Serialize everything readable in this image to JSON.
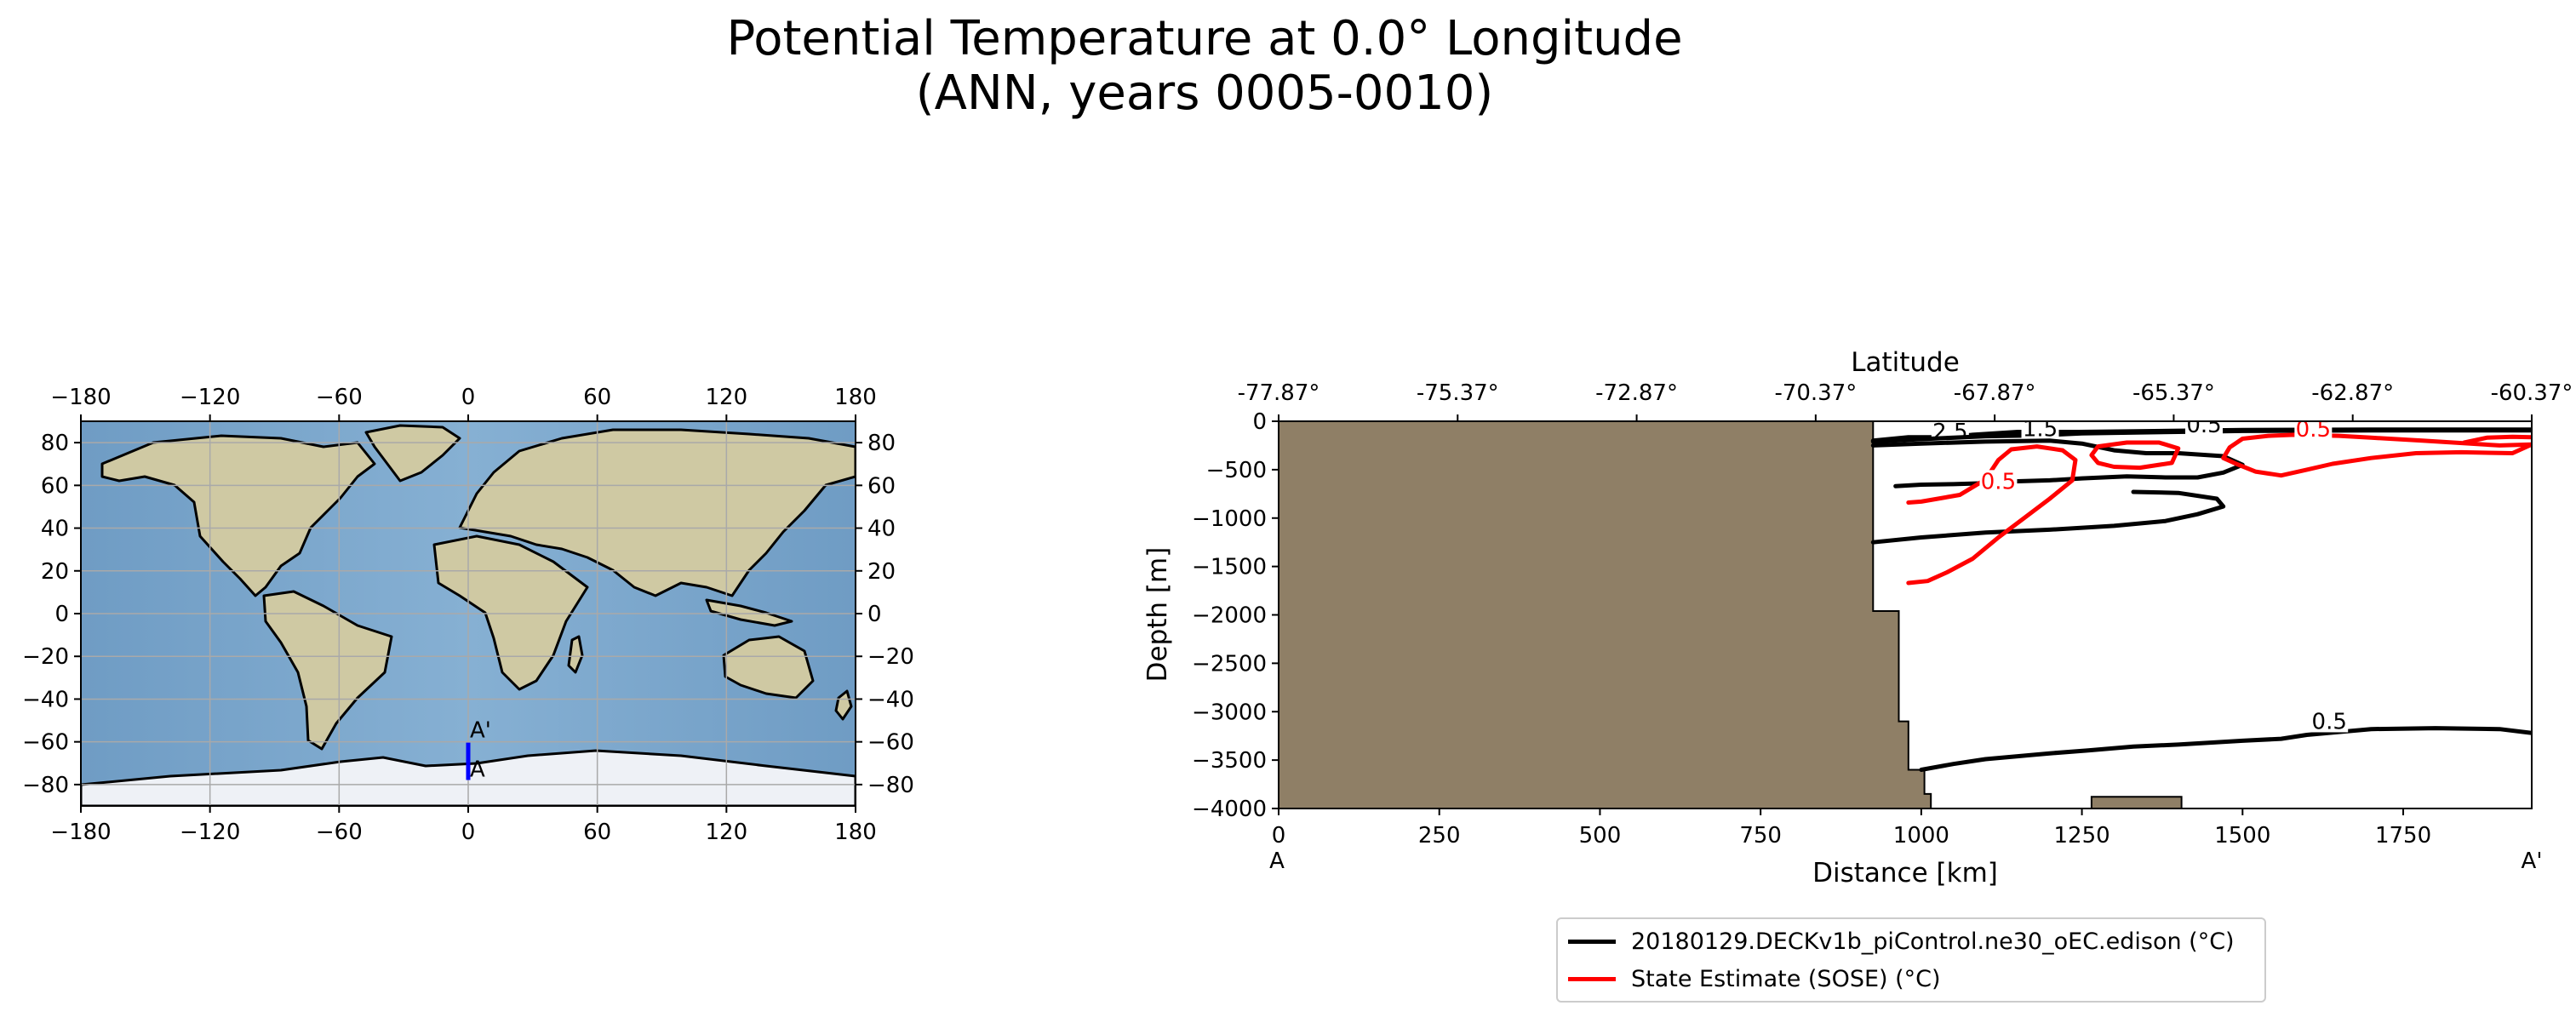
{
  "figure": {
    "title_line1": "Potential Temperature at 0.0° Longitude",
    "title_line2": "(ANN, years 0005-0010)"
  },
  "colors": {
    "model": "#000000",
    "obs": "#ff0000",
    "land": "#8f7f66",
    "section_line": "#0000ff",
    "ocean": "#7ba6c9",
    "map_land": "#cfc9a3",
    "ice": "#eef1f6"
  },
  "chart_data": [
    {
      "type": "map",
      "projection": "PlateCarree",
      "xticks": [
        -180,
        -120,
        -60,
        0,
        60,
        120,
        180
      ],
      "yticks": [
        -80,
        -60,
        -40,
        -20,
        0,
        20,
        40,
        60,
        80
      ],
      "xlim": [
        -180,
        180
      ],
      "ylim": [
        -90,
        90
      ],
      "grid": true,
      "transect": {
        "lon": 0.0,
        "lat_start": -77.87,
        "lat_end": -60.37,
        "start_label": "A",
        "end_label": "A'",
        "color": "#0000ff"
      }
    },
    {
      "type": "contour",
      "xlabel": "Distance [km]",
      "ylabel": "Depth [m]",
      "top_xlabel": "Latitude",
      "xlim": [
        0,
        1950
      ],
      "ylim": [
        -4000,
        0
      ],
      "xticks": [
        0,
        250,
        500,
        750,
        1000,
        1250,
        1500,
        1750
      ],
      "yticks": [
        0,
        -500,
        -1000,
        -1500,
        -2000,
        -2500,
        -3000,
        -3500,
        -4000
      ],
      "top_ticks": [
        "-77.87°",
        "-75.37°",
        "-72.87°",
        "-70.37°",
        "-67.87°",
        "-65.37°",
        "-62.87°",
        "-60.37°"
      ],
      "start_label": "A",
      "end_label": "A'",
      "bathymetry": [
        [
          0,
          0
        ],
        [
          925,
          0
        ],
        [
          925,
          -1960
        ],
        [
          965,
          -1960
        ],
        [
          965,
          -3100
        ],
        [
          980,
          -3100
        ],
        [
          980,
          -3600
        ],
        [
          1005,
          -3600
        ],
        [
          1005,
          -3850
        ],
        [
          1015,
          -3850
        ],
        [
          1015,
          -4000
        ],
        [
          0,
          -4000
        ]
      ],
      "seamount": [
        [
          1265,
          -4000
        ],
        [
          1265,
          -3880
        ],
        [
          1405,
          -3880
        ],
        [
          1405,
          -4000
        ]
      ],
      "series": [
        {
          "name": "20180129.DECKv1b_piControl.ne30_oEC.edison (°C)",
          "color": "#000000",
          "contours": [
            {
              "label": "2.5",
              "label_at": [
                1045,
                -165
              ],
              "points": [
                [
                  925,
                  -200
                ],
                [
                  980,
                  -165
                ],
                [
                  1045,
                  -165
                ],
                [
                  1080,
                  -140
                ],
                [
                  1150,
                  -110
                ],
                [
                  1220,
                  -110
                ],
                [
                  1245,
                  -110
                ],
                [
                  1320,
                  -105
                ],
                [
                  1500,
                  -90
                ],
                [
                  1700,
                  -85
                ],
                [
                  1950,
                  -85
                ]
              ]
            },
            {
              "label": "1.5",
              "label_at": [
                1185,
                -135
              ],
              "points": [
                [
                  925,
                  -210
                ],
                [
                  1000,
                  -185
                ],
                [
                  1100,
                  -155
                ],
                [
                  1185,
                  -145
                ],
                [
                  1250,
                  -125
                ],
                [
                  1400,
                  -110
                ],
                [
                  1500,
                  -100
                ],
                [
                  1700,
                  -95
                ],
                [
                  1950,
                  -95
                ]
              ]
            },
            {
              "label": "0.5",
              "label_at": [
                1440,
                -95
              ],
              "points": [
                [
                  925,
                  -250
                ],
                [
                  1000,
                  -230
                ],
                [
                  1100,
                  -210
                ],
                [
                  1200,
                  -200
                ],
                [
                  1250,
                  -230
                ],
                [
                  1300,
                  -300
                ],
                [
                  1350,
                  -330
                ],
                [
                  1400,
                  -330
                ],
                [
                  1470,
                  -360
                ],
                [
                  1500,
                  -450
                ],
                [
                  1470,
                  -530
                ],
                [
                  1430,
                  -580
                ],
                [
                  1380,
                  -580
                ],
                [
                  1320,
                  -570
                ],
                [
                  1250,
                  -590
                ],
                [
                  1200,
                  -610
                ],
                [
                  1150,
                  -620
                ],
                [
                  1100,
                  -640
                ],
                [
                  1050,
                  -650
                ],
                [
                  1000,
                  -655
                ],
                [
                  960,
                  -670
                ]
              ]
            },
            {
              "label": "",
              "label_at": null,
              "points": [
                [
                  925,
                  -1250
                ],
                [
                  1000,
                  -1200
                ],
                [
                  1100,
                  -1150
                ],
                [
                  1200,
                  -1120
                ],
                [
                  1300,
                  -1080
                ],
                [
                  1380,
                  -1030
                ],
                [
                  1430,
                  -960
                ],
                [
                  1470,
                  -880
                ],
                [
                  1460,
                  -800
                ],
                [
                  1400,
                  -740
                ],
                [
                  1330,
                  -730
                ]
              ]
            },
            {
              "label": "0.5",
              "label_at": [
                1635,
                -3160
              ],
              "points": [
                [
                  1000,
                  -3600
                ],
                [
                  1050,
                  -3540
                ],
                [
                  1100,
                  -3490
                ],
                [
                  1150,
                  -3460
                ],
                [
                  1200,
                  -3430
                ],
                [
                  1260,
                  -3400
                ],
                [
                  1330,
                  -3360
                ],
                [
                  1400,
                  -3340
                ],
                [
                  1500,
                  -3300
                ],
                [
                  1560,
                  -3280
                ],
                [
                  1600,
                  -3240
                ],
                [
                  1700,
                  -3180
                ],
                [
                  1800,
                  -3170
                ],
                [
                  1900,
                  -3180
                ],
                [
                  1950,
                  -3220
                ]
              ]
            }
          ]
        },
        {
          "name": "State Estimate (SOSE) (°C)",
          "color": "#ff0000",
          "contours": [
            {
              "label": "0.5",
              "label_at": [
                1120,
                -680
              ],
              "points": [
                [
                  980,
                  -1670
                ],
                [
                  1010,
                  -1650
                ],
                [
                  1040,
                  -1560
                ],
                [
                  1080,
                  -1420
                ],
                [
                  1120,
                  -1200
                ],
                [
                  1160,
                  -1000
                ],
                [
                  1200,
                  -800
                ],
                [
                  1235,
                  -610
                ],
                [
                  1240,
                  -400
                ],
                [
                  1220,
                  -300
                ],
                [
                  1180,
                  -260
                ],
                [
                  1140,
                  -290
                ],
                [
                  1120,
                  -400
                ],
                [
                  1100,
                  -600
                ],
                [
                  1060,
                  -760
                ],
                [
                  1000,
                  -830
                ],
                [
                  980,
                  -840
                ]
              ]
            },
            {
              "label": "",
              "label_at": null,
              "points": [
                [
                  1265,
                  -350
                ],
                [
                  1275,
                  -260
                ],
                [
                  1320,
                  -220
                ],
                [
                  1370,
                  -220
                ],
                [
                  1400,
                  -280
                ],
                [
                  1390,
                  -430
                ],
                [
                  1340,
                  -480
                ],
                [
                  1300,
                  -470
                ],
                [
                  1275,
                  -430
                ],
                [
                  1265,
                  -350
                ]
              ]
            },
            {
              "label": "0.5",
              "label_at": [
                1610,
                -140
              ],
              "points": [
                [
                  1500,
                  -180
                ],
                [
                  1540,
                  -150
                ],
                [
                  1580,
                  -140
                ],
                [
                  1650,
                  -150
                ],
                [
                  1700,
                  -170
                ],
                [
                  1780,
                  -200
                ],
                [
                  1900,
                  -250
                ],
                [
                  1950,
                  -240
                ],
                [
                  1920,
                  -330
                ],
                [
                  1840,
                  -320
                ],
                [
                  1770,
                  -330
                ],
                [
                  1700,
                  -380
                ],
                [
                  1640,
                  -440
                ],
                [
                  1600,
                  -500
                ],
                [
                  1560,
                  -560
                ],
                [
                  1520,
                  -520
                ],
                [
                  1490,
                  -440
                ],
                [
                  1470,
                  -380
                ],
                [
                  1480,
                  -270
                ],
                [
                  1500,
                  -180
                ]
              ]
            },
            {
              "label": "",
              "label_at": null,
              "points": [
                [
                  1845,
                  -220
                ],
                [
                  1880,
                  -170
                ],
                [
                  1920,
                  -160
                ],
                [
                  1950,
                  -165
                ]
              ]
            }
          ]
        }
      ],
      "legend": {
        "placement": "lower-center"
      }
    }
  ]
}
